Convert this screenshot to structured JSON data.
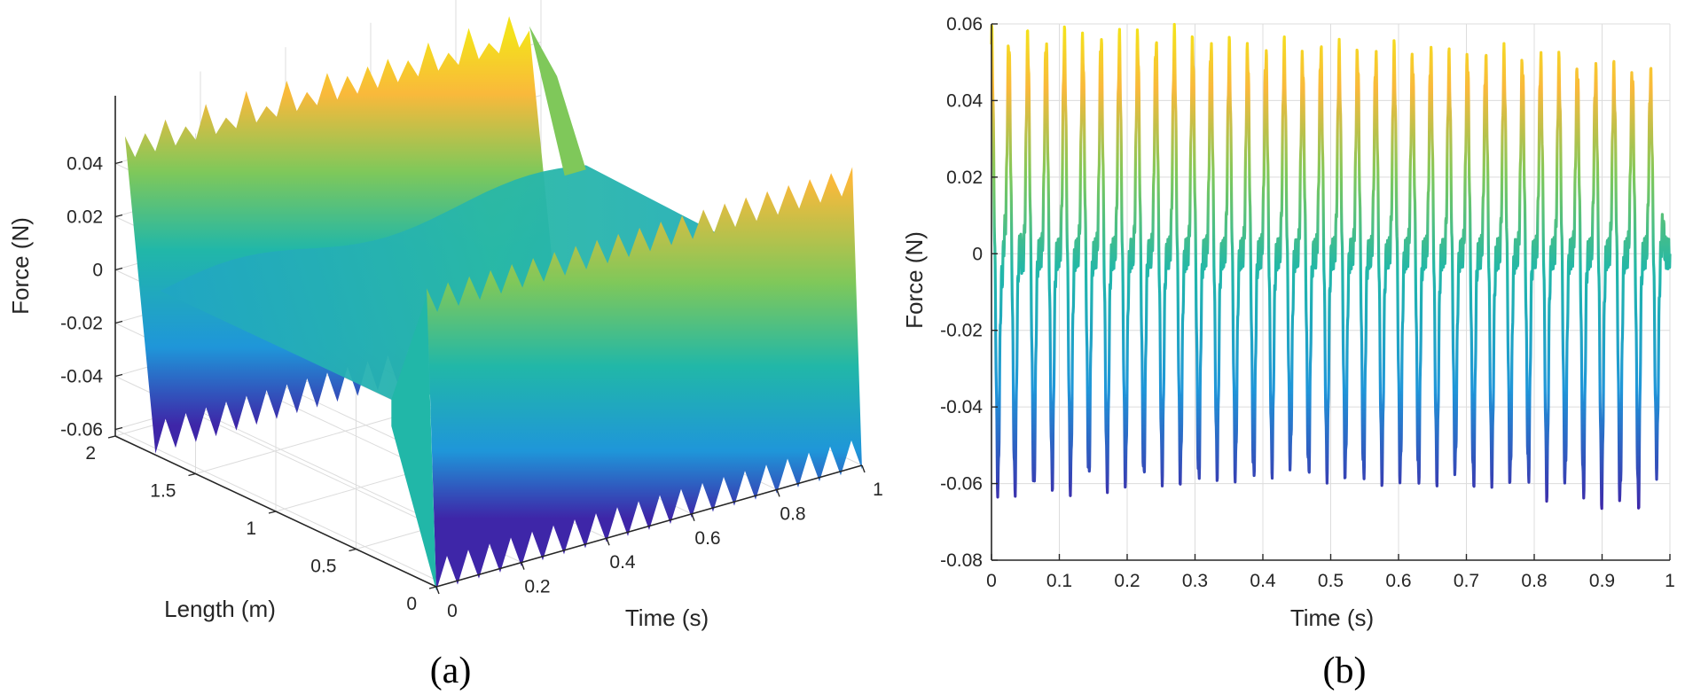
{
  "colors": {
    "parula_dark": "#3e26a8",
    "parula_blue": "#1f96d9",
    "parula_teal": "#21b7a8",
    "parula_green": "#7fc85a",
    "parula_orange": "#f9b93b",
    "parula_yellow": "#f4e11c",
    "grid": "#dcdcdc",
    "axis": "#262626"
  },
  "chart_data": [
    {
      "panel": "a",
      "type": "surface",
      "caption": "(a)",
      "title": "",
      "xlabel": "Time (s)",
      "ylabel": "Length (m)",
      "zlabel": "Force (N)",
      "xlim": [
        0,
        1
      ],
      "ylim": [
        0,
        2
      ],
      "zlim": [
        -0.065,
        0.06
      ],
      "xticks": [
        "0",
        "0.2",
        "0.4",
        "0.6",
        "0.8",
        "1"
      ],
      "yticks": [
        "0",
        "0.5",
        "1",
        "1.5",
        "2"
      ],
      "zticks": [
        "-0.06",
        "-0.04",
        "-0.02",
        "0",
        "0.02",
        "0.04"
      ],
      "description_values": {
        "end_peak_max": 0.056,
        "end_peak_min": -0.062,
        "mid_span_amplitude": 0.006,
        "pulses_per_second": 36
      }
    },
    {
      "panel": "b",
      "type": "line",
      "caption": "(b)",
      "title": "",
      "xlabel": "Time (s)",
      "ylabel": "Force (N)",
      "xlim": [
        0,
        1
      ],
      "ylim": [
        -0.08,
        0.06
      ],
      "xticks": [
        "0",
        "0.1",
        "0.2",
        "0.3",
        "0.4",
        "0.5",
        "0.6",
        "0.7",
        "0.8",
        "0.9",
        "1"
      ],
      "yticks": [
        "-0.08",
        "-0.06",
        "-0.04",
        "-0.02",
        "0",
        "0.02",
        "0.04",
        "0.06"
      ],
      "grid": true,
      "pulse_times": [
        0.005,
        0.03,
        0.058,
        0.085,
        0.112,
        0.139,
        0.166,
        0.193,
        0.22,
        0.247,
        0.274,
        0.301,
        0.328,
        0.355,
        0.382,
        0.409,
        0.436,
        0.463,
        0.49,
        0.517,
        0.544,
        0.571,
        0.598,
        0.625,
        0.652,
        0.679,
        0.706,
        0.733,
        0.76,
        0.787,
        0.814,
        0.841,
        0.868,
        0.895,
        0.922,
        0.949,
        0.976
      ],
      "peak_max": [
        0.056,
        0.055,
        0.056,
        0.055,
        0.056,
        0.055,
        0.056,
        0.055,
        0.056,
        0.055,
        0.056,
        0.055,
        0.054,
        0.053,
        0.053,
        0.052,
        0.053,
        0.051,
        0.053,
        0.052,
        0.052,
        0.051,
        0.052,
        0.051,
        0.052,
        0.05,
        0.051,
        0.05,
        0.051,
        0.05,
        0.05,
        0.049,
        0.048,
        0.047,
        0.047,
        0.047,
        0.046
      ],
      "peak_min": [
        -0.061,
        -0.061,
        -0.061,
        -0.059,
        -0.06,
        -0.058,
        -0.059,
        -0.058,
        -0.058,
        -0.057,
        -0.058,
        -0.059,
        -0.056,
        -0.057,
        -0.058,
        -0.055,
        -0.054,
        -0.057,
        -0.056,
        -0.057,
        -0.058,
        -0.057,
        -0.058,
        -0.059,
        -0.057,
        -0.056,
        -0.06,
        -0.057,
        -0.059,
        -0.058,
        -0.061,
        -0.059,
        -0.062,
        -0.063,
        -0.064,
        -0.065,
        -0.055
      ],
      "secondary_amplitude": 0.007
    }
  ]
}
